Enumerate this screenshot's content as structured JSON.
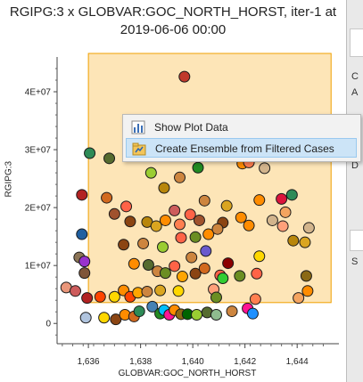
{
  "title": {
    "line1": "RGIPG:3 x GLOBVAR:GOC_NORTH_HORST, iter-1 at",
    "line2": "2019-06-06 00:00"
  },
  "context_menu": {
    "items": [
      {
        "label": "Show Plot Data",
        "icon": "chart-icon"
      },
      {
        "label": "Create Ensemble from Filtered Cases",
        "icon": "ensemble-icon"
      }
    ]
  },
  "colors": {
    "selection_fill": "#fde5b7",
    "selection_border": "#f0a000",
    "menu_highlight": "#cce4f7"
  },
  "chart_data": {
    "type": "scatter",
    "title": "RGIPG:3 x GLOBVAR:GOC_NORTH_HORST, iter-1 at 2019-06-06 00:00",
    "xlabel": "GLOBVAR:GOC_NORTH_HORST",
    "ylabel": "RGIPG:3",
    "xlim": [
      1634.8,
      1645.6
    ],
    "ylim": [
      -3500000,
      46000000
    ],
    "xticks": [
      "1,636",
      "1,638",
      "1,640",
      "1,642",
      "1,644"
    ],
    "yticks": [
      "0",
      "1E+07",
      "2E+07",
      "3E+07",
      "4E+07"
    ],
    "xtick_values": [
      1636,
      1638,
      1640,
      1642,
      1644
    ],
    "ytick_values": [
      0,
      10000000,
      20000000,
      30000000,
      40000000
    ],
    "filter_range": {
      "x": [
        1636.0,
        1645.3
      ],
      "y": [
        3600000,
        48000000
      ]
    },
    "points": [
      [
        1639.68,
        42600000,
        "#c0392b"
      ],
      [
        1636.05,
        29400000,
        "#2e8b57"
      ],
      [
        1636.8,
        28500000,
        "#556b2f"
      ],
      [
        1637.9,
        29500000,
        "#6b8e23"
      ],
      [
        1638.4,
        26000000,
        "#9acd32"
      ],
      [
        1639.5,
        25200000,
        "#cd853f"
      ],
      [
        1640.2,
        26900000,
        "#228b22"
      ],
      [
        1641.9,
        27600000,
        "#ff8c00"
      ],
      [
        1642.15,
        27800000,
        "#ff7f50"
      ],
      [
        1642.75,
        26800000,
        "#d2b48c"
      ],
      [
        1638.9,
        23400000,
        "#b8860b"
      ],
      [
        1635.75,
        22200000,
        "#b22222"
      ],
      [
        1636.7,
        21700000,
        "#d2691e"
      ],
      [
        1637.45,
        20200000,
        "#ff6347"
      ],
      [
        1639.3,
        19500000,
        "#cd5c5c"
      ],
      [
        1640.45,
        21200000,
        "#cd853f"
      ],
      [
        1641.3,
        20300000,
        "#daa520"
      ],
      [
        1642.55,
        21300000,
        "#ff8c00"
      ],
      [
        1643.4,
        21500000,
        "#dc143c"
      ],
      [
        1643.8,
        22200000,
        "#2e8b57"
      ],
      [
        1643.55,
        19200000,
        "#f4a460"
      ],
      [
        1637.0,
        18900000,
        "#a0522d"
      ],
      [
        1637.6,
        17600000,
        "#8b4513"
      ],
      [
        1638.25,
        17500000,
        "#b8860b"
      ],
      [
        1638.6,
        16800000,
        "#daa520"
      ],
      [
        1638.95,
        17800000,
        "#ff8c00"
      ],
      [
        1639.5,
        17100000,
        "#ff7f50"
      ],
      [
        1639.9,
        18800000,
        "#ff6347"
      ],
      [
        1640.25,
        17800000,
        "#a0522d"
      ],
      [
        1641.15,
        17400000,
        "#8b4513"
      ],
      [
        1641.85,
        18300000,
        "#ff8c00"
      ],
      [
        1643.05,
        17800000,
        "#d2b48c"
      ],
      [
        1643.45,
        16800000,
        "#ffa07a"
      ],
      [
        1644.45,
        16500000,
        "#d2b48c"
      ],
      [
        1635.75,
        15400000,
        "#1f5fa0"
      ],
      [
        1637.35,
        13600000,
        "#8b4513"
      ],
      [
        1638.1,
        13800000,
        "#cd853f"
      ],
      [
        1638.85,
        13200000,
        "#9acd32"
      ],
      [
        1639.55,
        14800000,
        "#ff6347"
      ],
      [
        1640.1,
        14900000,
        "#6b8e23"
      ],
      [
        1640.6,
        15400000,
        "#ff8c00"
      ],
      [
        1640.95,
        16300000,
        "#cd853f"
      ],
      [
        1642.15,
        16900000,
        "#ff8c00"
      ],
      [
        1642.55,
        11600000,
        "#ffd700"
      ],
      [
        1643.85,
        14300000,
        "#b8860b"
      ],
      [
        1644.3,
        14000000,
        "#daa520"
      ],
      [
        1635.65,
        11400000,
        "#8b7355"
      ],
      [
        1635.85,
        10700000,
        "#9932cc"
      ],
      [
        1635.85,
        8700000,
        "#7f5539"
      ],
      [
        1637.75,
        10300000,
        "#ff8c00"
      ],
      [
        1638.3,
        10100000,
        "#556b2f"
      ],
      [
        1638.65,
        9000000,
        "#cd853f"
      ],
      [
        1638.95,
        8700000,
        "#6b8e23"
      ],
      [
        1639.3,
        9900000,
        "#ff6347"
      ],
      [
        1639.6,
        8100000,
        "#ffa500"
      ],
      [
        1639.95,
        11400000,
        "#cd853f"
      ],
      [
        1640.1,
        8600000,
        "#8b4513"
      ],
      [
        1640.5,
        12500000,
        "#6a5acd"
      ],
      [
        1640.45,
        9500000,
        "#d2691e"
      ],
      [
        1641.05,
        8300000,
        "#ff6347"
      ],
      [
        1641.35,
        10400000,
        "#8b0000"
      ],
      [
        1641.8,
        8200000,
        "#6b8e23"
      ],
      [
        1642.45,
        8600000,
        "#ff6347"
      ],
      [
        1640.8,
        5900000,
        "#ffa07a"
      ],
      [
        1641.15,
        7800000,
        "#32cd32"
      ],
      [
        1642.4,
        4200000,
        "#ff7f50"
      ],
      [
        1644.35,
        8200000,
        "#8b6914"
      ],
      [
        1644.05,
        4400000,
        "#f4a460"
      ],
      [
        1644.4,
        5600000,
        "#ff8c00"
      ],
      [
        1635.15,
        6200000,
        "#e9967a"
      ],
      [
        1635.5,
        5600000,
        "#cd5c5c"
      ],
      [
        1635.95,
        4400000,
        "#b22222"
      ],
      [
        1636.45,
        4600000,
        "#ff4500"
      ],
      [
        1637.0,
        4600000,
        "#ffd700"
      ],
      [
        1637.35,
        5700000,
        "#ff8c00"
      ],
      [
        1637.6,
        4600000,
        "#ff4500"
      ],
      [
        1637.9,
        5300000,
        "#ffa500"
      ],
      [
        1638.25,
        5500000,
        "#cd853f"
      ],
      [
        1638.75,
        5700000,
        "#daa520"
      ],
      [
        1639.45,
        5600000,
        "#ffd700"
      ],
      [
        1640.9,
        4500000,
        "#6b8e23"
      ],
      [
        1635.9,
        1000000,
        "#b0c4de"
      ],
      [
        1636.6,
        1000000,
        "#ffd700"
      ],
      [
        1637.05,
        700000,
        "#8b4513"
      ],
      [
        1637.4,
        1500000,
        "#ff8c00"
      ],
      [
        1637.75,
        1200000,
        "#d2691e"
      ],
      [
        1637.95,
        2100000,
        "#2e8b57"
      ],
      [
        1638.45,
        2900000,
        "#4682b4"
      ],
      [
        1638.75,
        1700000,
        "#228b22"
      ],
      [
        1638.9,
        2300000,
        "#00bfff"
      ],
      [
        1639.1,
        1500000,
        "#ff1493"
      ],
      [
        1639.3,
        2300000,
        "#ff8c00"
      ],
      [
        1639.55,
        1600000,
        "#8b6914"
      ],
      [
        1639.8,
        1600000,
        "#006400"
      ],
      [
        1640.15,
        1500000,
        "#9acd32"
      ],
      [
        1640.55,
        1900000,
        "#556b2f"
      ],
      [
        1640.9,
        1500000,
        "#8fbc8f"
      ],
      [
        1641.5,
        2100000,
        "#cd853f"
      ],
      [
        1642.1,
        2600000,
        "#ff1493"
      ],
      [
        1642.3,
        1700000,
        "#1e90ff"
      ]
    ]
  }
}
